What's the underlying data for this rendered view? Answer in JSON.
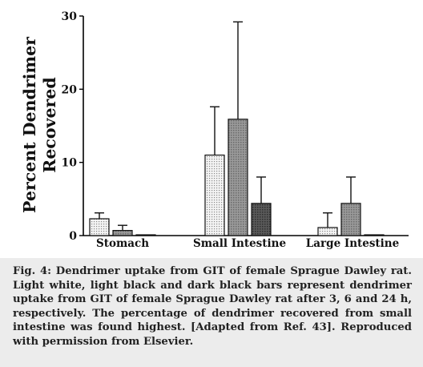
{
  "chart_data": {
    "type": "bar",
    "ylabel_lines": [
      "Percent Dendrimer",
      "Recovered"
    ],
    "xlabel": "",
    "ylim": [
      0,
      30
    ],
    "yticks": [
      0,
      10,
      20,
      30
    ],
    "categories": [
      "Stomach",
      "Small Intestine",
      "Large Intestine"
    ],
    "series": [
      {
        "values": [
          2.3,
          11.0,
          1.1
        ],
        "errors": [
          0.8,
          6.6,
          2.0
        ],
        "fill": "light-dotted"
      },
      {
        "values": [
          0.7,
          15.9,
          4.4
        ],
        "errors": [
          0.7,
          13.3,
          3.6
        ],
        "fill": "light-black"
      },
      {
        "values": [
          0.1,
          4.4,
          0.1
        ],
        "errors": [
          0.0,
          3.6,
          0.0
        ],
        "fill": "dark-black"
      }
    ],
    "grid": false,
    "legend": "none"
  },
  "caption": "Fig. 4: Dendrimer uptake from GIT of female Sprague Dawley rat. Light white, light black and dark black bars represent dendrimer uptake from GIT of female Sprague Dawley rat after 3, 6 and 24 h, respectively. The percentage of dendrimer recovered from small intestine was found highest. [Adapted from Ref. 43]. Reproduced with permission from Elsevier."
}
